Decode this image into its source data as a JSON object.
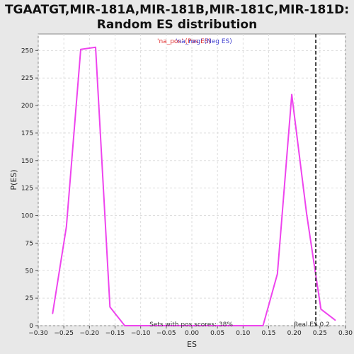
{
  "chart_data": {
    "type": "line",
    "title_lines": [
      "TGAATGT,MIR-181A,MIR-181B,MIR-181C,MIR-181D:",
      "Random ES distribution"
    ],
    "xlabel": "ES",
    "ylabel": "P(ES)",
    "xlim": [
      -0.3,
      0.3
    ],
    "ylim": [
      0,
      265
    ],
    "x_ticks": [
      -0.3,
      -0.25,
      -0.2,
      -0.15,
      -0.1,
      -0.05,
      0.0,
      0.05,
      0.1,
      0.15,
      0.2,
      0.25,
      0.3
    ],
    "x_tick_labels": [
      "−0.30",
      "−0.25",
      "−0.20",
      "−0.15",
      "−0.10",
      "−0.05",
      "0.00",
      "0.05",
      "0.10",
      "0.15",
      "0.20",
      "0.25",
      "0.30"
    ],
    "y_ticks": [
      0,
      25,
      50,
      75,
      100,
      125,
      150,
      175,
      200,
      225,
      250
    ],
    "y_tick_labels": [
      "0",
      "25",
      "50",
      "75",
      "100",
      "125",
      "150",
      "175",
      "200",
      "225",
      "250"
    ],
    "grid": true,
    "legend_pos_label": "'na_pos' (Pos ES)",
    "legend_neg_label": "'na_neg' (Neg ES)",
    "series": [
      {
        "color": "#ee44ee",
        "x": [
          -0.272,
          -0.245,
          -0.217,
          -0.188,
          -0.16,
          -0.131,
          -0.103,
          -0.075,
          -0.046,
          -0.018,
          0.01,
          0.039,
          0.067,
          0.095,
          0.124,
          0.139,
          0.167,
          0.195,
          0.224,
          0.238,
          0.252,
          0.28
        ],
        "y": [
          11,
          90,
          251,
          253,
          17,
          0,
          0,
          0,
          0,
          0,
          0,
          0,
          0,
          0,
          0,
          0,
          47,
          210,
          102,
          58,
          15,
          5
        ]
      }
    ],
    "real_es": 0.242,
    "real_es_label": "Real ES 0.2",
    "pos_scores_label": "Sets with pos scores: 38%"
  }
}
